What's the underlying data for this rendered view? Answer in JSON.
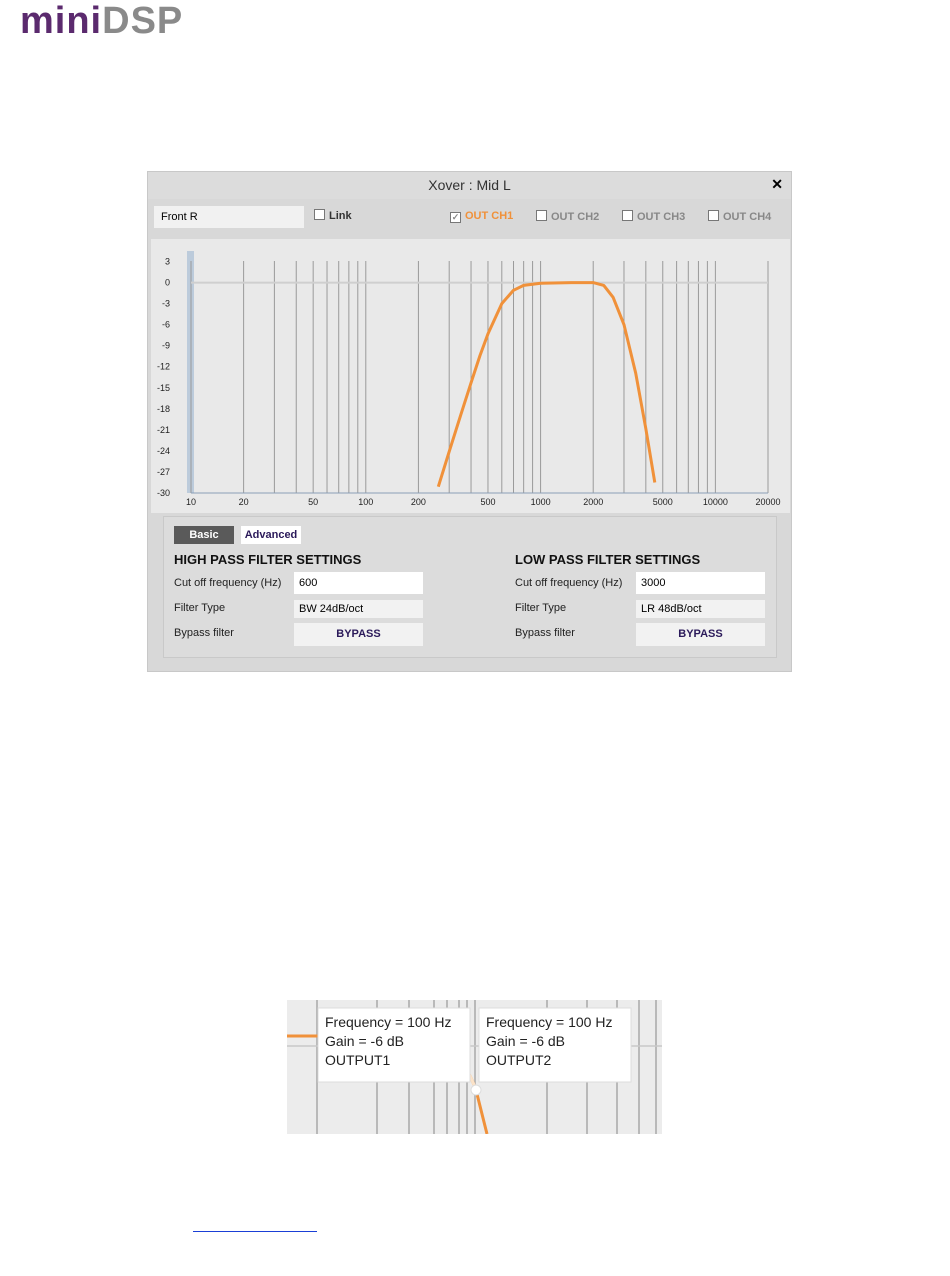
{
  "logo": {
    "mini": "mini",
    "dsp": "DSP"
  },
  "window": {
    "title": "Xover : Mid L",
    "close": "✕",
    "input_name": "Front R",
    "link": "Link",
    "outputs": [
      {
        "label": "OUT CH1",
        "checked": true
      },
      {
        "label": "OUT CH2",
        "checked": false
      },
      {
        "label": "OUT CH3",
        "checked": false
      },
      {
        "label": "OUT CH4",
        "checked": false
      }
    ]
  },
  "chart_data": {
    "type": "line",
    "x": [
      260,
      300,
      350,
      400,
      450,
      500,
      600,
      700,
      800,
      1000,
      1500,
      2000,
      2300,
      2600,
      3000,
      3500,
      4000,
      4500
    ],
    "values": [
      -29.1,
      -24.1,
      -18.8,
      -14.3,
      -10.4,
      -7.3,
      -3,
      -1.1,
      -0.4,
      -0.1,
      0,
      0,
      -0.4,
      -2.1,
      -6,
      -12.9,
      -20.8,
      -28.5
    ],
    "color": "#f0913a",
    "log_x": true,
    "xlim": [
      10,
      20000
    ],
    "ylim": [
      -30,
      4.5
    ],
    "xticks": [
      10,
      20,
      50,
      100,
      200,
      500,
      1000,
      2000,
      5000,
      10000,
      20000
    ],
    "xgrid": [
      10,
      20,
      30,
      40,
      50,
      60,
      70,
      80,
      90,
      100,
      200,
      300,
      400,
      500,
      600,
      700,
      800,
      900,
      1000,
      2000,
      3000,
      4000,
      5000,
      6000,
      7000,
      8000,
      9000,
      10000,
      20000
    ],
    "yticks": [
      3,
      0,
      -3,
      -6,
      -9,
      -12,
      -15,
      -18,
      -21,
      -24,
      -27,
      -30
    ],
    "grid": true
  },
  "tabs": {
    "items": [
      "Basic",
      "Advanced"
    ],
    "active": 0
  },
  "high_pass": {
    "title": "HIGH PASS FILTER SETTINGS",
    "rows": [
      {
        "label": "Cut off frequency (Hz)",
        "value": "600"
      },
      {
        "label": "Filter Type",
        "value": "BW 24dB/oct"
      },
      {
        "label": "Bypass filter",
        "value": "BYPASS"
      }
    ]
  },
  "low_pass": {
    "title": "LOW PASS FILTER SETTINGS",
    "rows": [
      {
        "label": "Cut off frequency (Hz)",
        "value": "3000"
      },
      {
        "label": "Filter Type",
        "value": "LR 48dB/oct"
      },
      {
        "label": "Bypass filter",
        "value": "BYPASS"
      }
    ]
  },
  "tooltips": [
    {
      "lines": [
        "Frequency = 100 Hz",
        "Gain = -6 dB",
        "OUTPUT1"
      ]
    },
    {
      "lines": [
        "Frequency = 100 Hz",
        "Gain = -6 dB",
        "OUTPUT2"
      ]
    }
  ]
}
